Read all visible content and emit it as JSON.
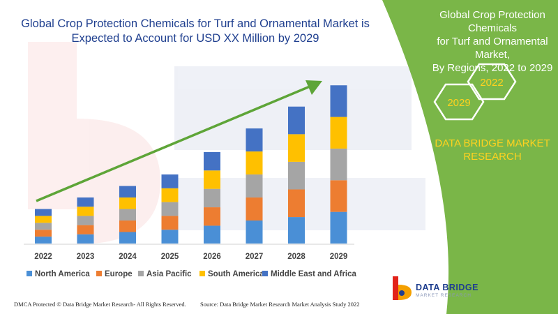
{
  "header": {
    "title_line1": "Global Crop Protection Chemicals for Turf and Ornamental Market is",
    "title_line2": "Expected to Account for USD XX Million by 2029"
  },
  "side_panel": {
    "title_line1": "Global Crop Protection Chemicals",
    "title_line2": "for Turf and Ornamental Market,",
    "title_line3": "By Regions, 2022 to 2029",
    "hex_start": "2029",
    "hex_end": "2022",
    "company_line1": "DATA BRIDGE MARKET",
    "company_line2": "RESEARCH",
    "bg_color": "#7ab648",
    "accent_color": "#ffd21f"
  },
  "logo": {
    "name": "DATA BRIDGE",
    "tagline": "MARKET RESEARCH",
    "icon": "data-bridge-logo-icon"
  },
  "footer": {
    "left": "DMCA Protected © Data Bridge Market Research- All Rights Reserved.",
    "right": "Source: Data Bridge Market Research Market Analysis Study 2022"
  },
  "chart_data": {
    "type": "bar",
    "stacked": true,
    "categories": [
      "2022",
      "2023",
      "2024",
      "2025",
      "2026",
      "2027",
      "2028",
      "2029"
    ],
    "series": [
      {
        "name": "North America",
        "color": "#4a8fd6",
        "values": [
          1.2,
          1.6,
          2.0,
          2.4,
          3.1,
          4.0,
          4.6,
          5.5
        ]
      },
      {
        "name": "Europe",
        "color": "#ed7d31",
        "values": [
          1.2,
          1.6,
          2.0,
          2.4,
          3.2,
          4.0,
          4.8,
          5.5
        ]
      },
      {
        "name": "Asia Pacific",
        "color": "#a5a5a5",
        "values": [
          1.2,
          1.6,
          2.0,
          2.4,
          3.2,
          4.0,
          4.8,
          5.5
        ]
      },
      {
        "name": "South America",
        "color": "#ffc000",
        "values": [
          1.2,
          1.6,
          2.0,
          2.4,
          3.2,
          4.0,
          4.8,
          5.5
        ]
      },
      {
        "name": "Middle East and Africa",
        "color": "#4472c4",
        "values": [
          1.2,
          1.6,
          2.0,
          2.4,
          3.2,
          4.0,
          4.8,
          5.5
        ]
      }
    ],
    "ylim": [
      0,
      28.5
    ],
    "grid": false,
    "y_axis_visible": false,
    "legend": "bottom",
    "trend_arrow_color": "#5ea538"
  }
}
